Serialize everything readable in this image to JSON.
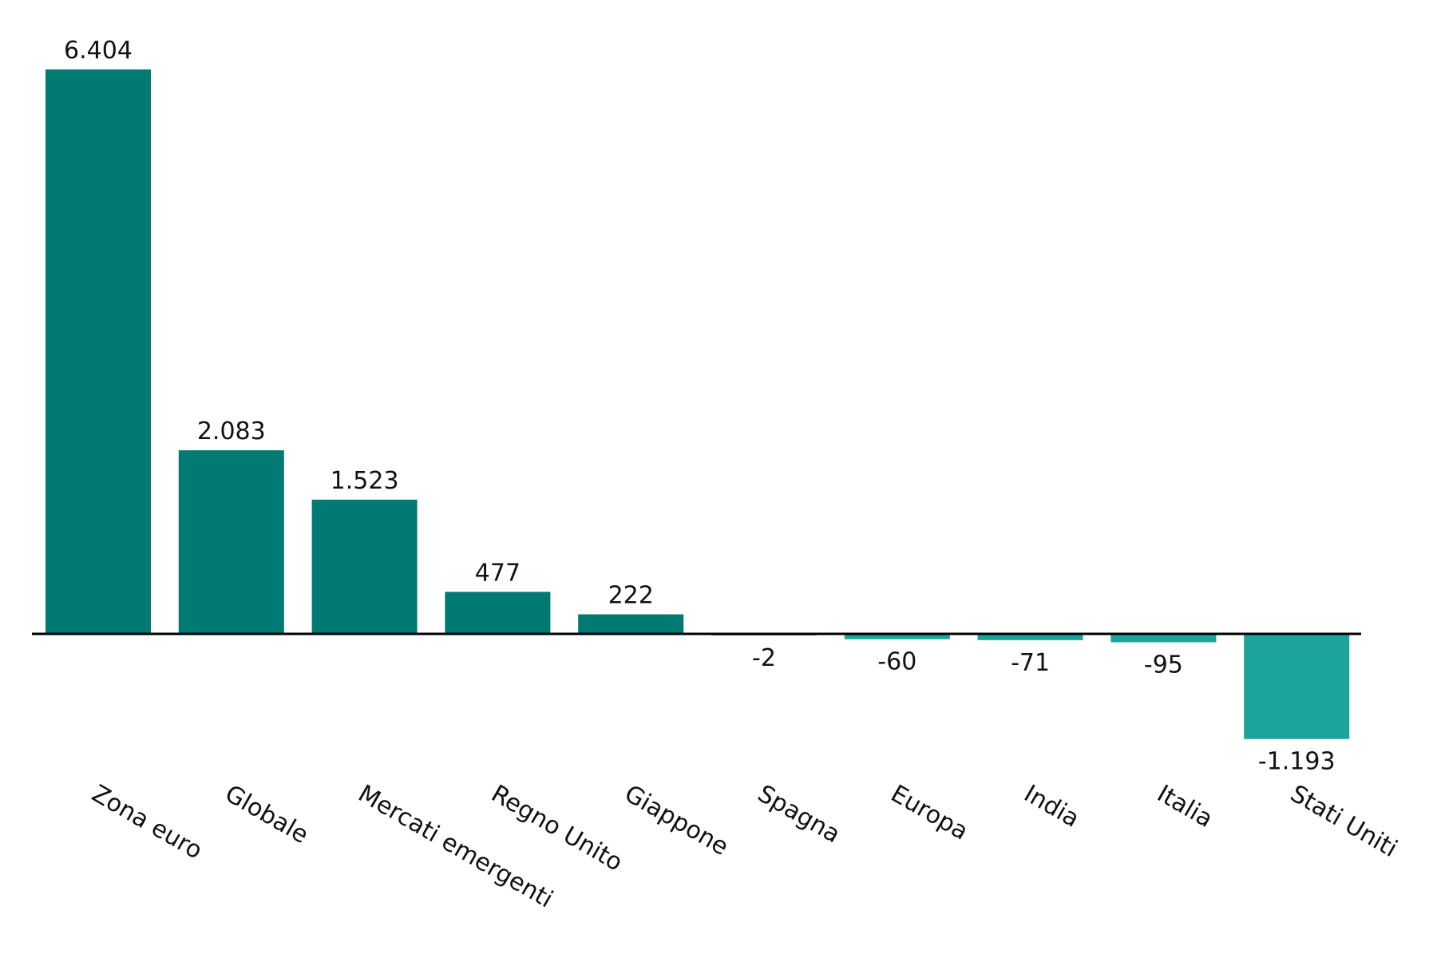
{
  "chart_data": {
    "type": "bar",
    "categories": [
      "Zona euro",
      "Globale",
      "Mercati emergenti",
      "Regno Unito",
      "Giappone",
      "Spagna",
      "Europa",
      "India",
      "Italia",
      "Stati Uniti"
    ],
    "values": [
      6404,
      2083,
      1523,
      477,
      222,
      -2,
      -60,
      -71,
      -95,
      -1193
    ],
    "value_labels": [
      "6.404",
      "2.083",
      "1.523",
      "477",
      "222",
      "-2",
      "-60",
      "-71",
      "-95",
      "-1.193"
    ],
    "title": "",
    "xlabel": "",
    "ylabel": "",
    "ylim": [
      -1193,
      6404
    ],
    "grid": false,
    "legend": "none",
    "colors": {
      "positive": "#007a73",
      "negative": "#1ca39b",
      "axis": "#000000"
    }
  }
}
